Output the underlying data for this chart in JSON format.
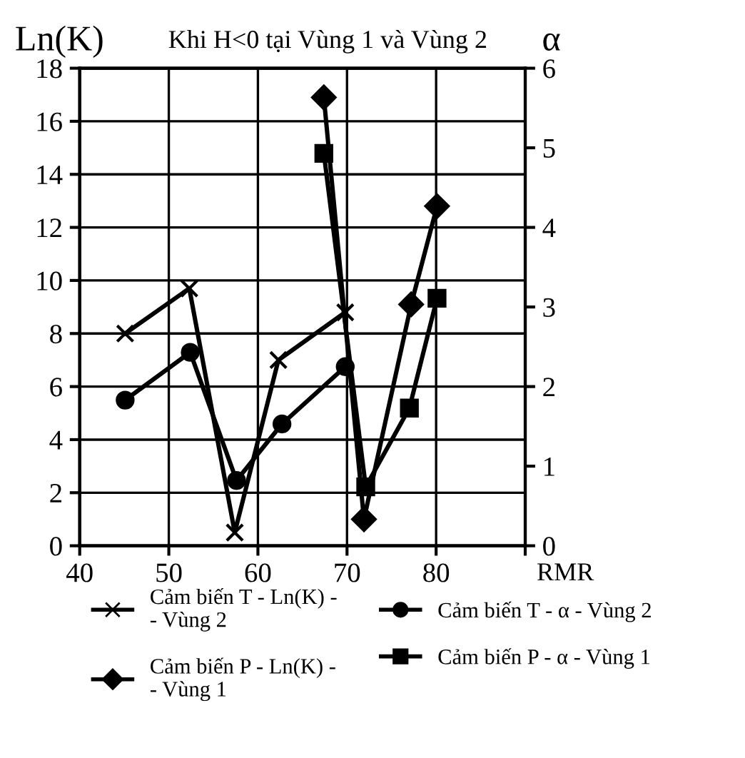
{
  "chart_data": {
    "type": "line",
    "title": "Khi H<0 tại Vùng 1 và Vùng 2",
    "xlabel": "RMR",
    "ylabel": "Ln(K)",
    "y2label": "α",
    "xlim": [
      40,
      90
    ],
    "xticks": [
      40,
      50,
      60,
      70,
      80,
      {
        "value": 90,
        "label": null
      }
    ],
    "ylim": [
      0,
      18
    ],
    "yticks": [
      0,
      2,
      4,
      6,
      8,
      10,
      12,
      14,
      16,
      18
    ],
    "y2lim": [
      0,
      6
    ],
    "y2ticks": [
      0,
      1,
      2,
      3,
      4,
      5,
      6
    ],
    "grid": true,
    "legend": "bottom",
    "line_style": "solid",
    "series": [
      {
        "name": "Cảm biến T - Ln(K) -\n- Vùng 2",
        "color": "#000000",
        "marker": "cross",
        "x": [
          45.1,
          52.3,
          57.4,
          62.3,
          69.8
        ],
        "values": [
          8.0,
          9.7,
          0.5,
          7.0,
          8.8
        ]
      },
      {
        "name": "Cảm biến T - α - Vùng 2",
        "color": "#000000",
        "marker": "circle",
        "axis": "y2",
        "x": [
          45.1,
          52.4,
          57.6,
          62.7,
          69.8
        ],
        "values": [
          1.83,
          2.43,
          0.82,
          1.53,
          2.25
        ]
      },
      {
        "name": "Cảm biến P - Ln(K) -\n- Vùng 1",
        "color": "#000000",
        "marker": "diamond",
        "x": [
          67.4,
          71.9,
          77.2,
          80.1
        ],
        "values": [
          16.9,
          1.0,
          9.1,
          12.8
        ]
      },
      {
        "name": "Cảm biến P - α - Vùng 1",
        "color": "#000000",
        "marker": "square",
        "axis": "y2",
        "x": [
          67.4,
          72.1,
          77.0,
          80.1
        ],
        "values": [
          4.93,
          0.74,
          1.73,
          3.11
        ]
      }
    ]
  }
}
